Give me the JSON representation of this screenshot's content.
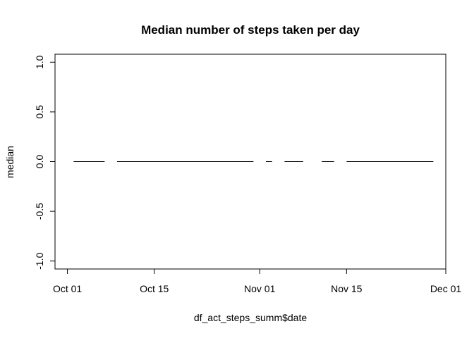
{
  "chart_data": {
    "type": "line",
    "title": "Median number of steps taken per day",
    "xlabel": "df_act_steps_summ$date",
    "ylabel": "median",
    "x_ticks": [
      "Oct 01",
      "Oct 15",
      "Nov 01",
      "Nov 15",
      "Dec 01"
    ],
    "y_ticks": [
      "-1.0",
      "-0.5",
      "0.0",
      "0.5",
      "1.0"
    ],
    "xlim": [
      "2012-09-29",
      "2012-12-01"
    ],
    "ylim": [
      -1.08,
      1.08
    ],
    "segments": [
      {
        "x": [
          "2012-10-02",
          "2012-10-07"
        ],
        "y": [
          0,
          0
        ]
      },
      {
        "x": [
          "2012-10-09",
          "2012-10-31"
        ],
        "y": [
          0,
          0
        ]
      },
      {
        "x": [
          "2012-11-02",
          "2012-11-03"
        ],
        "y": [
          0,
          0
        ]
      },
      {
        "x": [
          "2012-11-05",
          "2012-11-08"
        ],
        "y": [
          0,
          0
        ]
      },
      {
        "x": [
          "2012-11-11",
          "2012-11-13"
        ],
        "y": [
          0,
          0
        ]
      },
      {
        "x": [
          "2012-11-15",
          "2012-11-29"
        ],
        "y": [
          0,
          0
        ]
      }
    ],
    "grid": false,
    "legend": "none"
  }
}
